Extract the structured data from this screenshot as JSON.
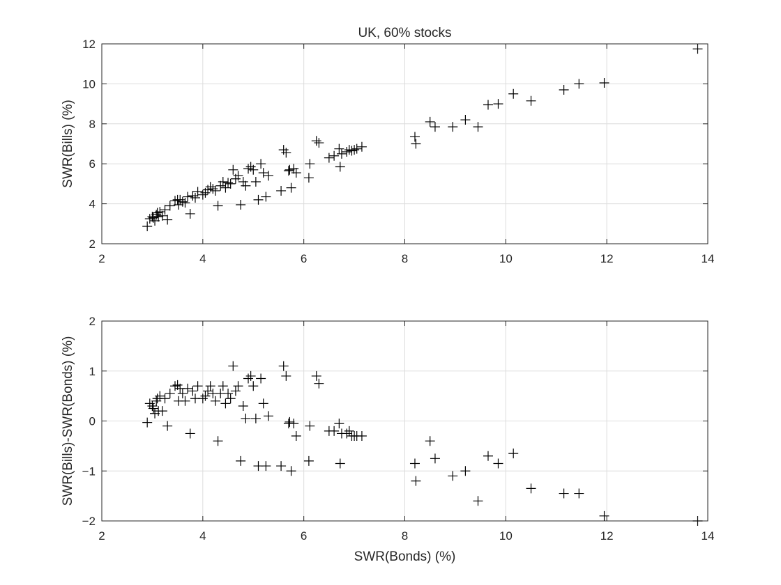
{
  "chart_data": [
    {
      "type": "scatter",
      "title": "UK, 60% stocks",
      "xlabel": "",
      "ylabel": "SWR(Bills) (%)",
      "xlim": [
        2,
        14
      ],
      "ylim": [
        2,
        12
      ],
      "xticks": [
        2,
        4,
        6,
        8,
        10,
        12,
        14
      ],
      "yticks": [
        2,
        4,
        6,
        8,
        10,
        12
      ],
      "grid": true,
      "marker": "plus",
      "x": [
        2.9,
        2.95,
        3.0,
        3.02,
        3.05,
        3.08,
        3.1,
        3.12,
        3.15,
        3.2,
        3.25,
        3.3,
        3.35,
        3.45,
        3.5,
        3.52,
        3.55,
        3.6,
        3.65,
        3.7,
        3.75,
        3.8,
        3.85,
        3.9,
        4.0,
        4.05,
        4.1,
        4.15,
        4.2,
        4.25,
        4.3,
        4.35,
        4.4,
        4.45,
        4.5,
        4.55,
        4.6,
        4.65,
        4.7,
        4.75,
        4.8,
        4.85,
        4.9,
        4.95,
        5.0,
        5.05,
        5.1,
        5.15,
        5.2,
        5.25,
        5.3,
        5.55,
        5.6,
        5.65,
        5.7,
        5.72,
        5.75,
        5.8,
        5.85,
        6.1,
        6.12,
        6.25,
        6.3,
        6.5,
        6.6,
        6.7,
        6.72,
        6.75,
        6.85,
        6.9,
        6.95,
        7.0,
        7.05,
        7.15,
        8.2,
        8.22,
        8.5,
        8.6,
        8.95,
        9.2,
        9.45,
        9.65,
        9.85,
        10.15,
        10.5,
        11.15,
        11.45,
        11.95,
        13.8
      ],
      "y": [
        2.87,
        3.25,
        3.35,
        3.3,
        3.15,
        3.45,
        3.55,
        3.35,
        3.6,
        3.4,
        3.7,
        3.2,
        3.9,
        4.15,
        4.2,
        3.95,
        4.2,
        4.1,
        4.05,
        4.35,
        3.5,
        4.4,
        4.3,
        4.6,
        4.45,
        4.55,
        4.7,
        4.85,
        4.75,
        4.65,
        3.9,
        4.9,
        5.1,
        4.8,
        5.05,
        5.0,
        5.7,
        5.25,
        5.4,
        3.95,
        5.1,
        4.9,
        5.75,
        5.85,
        5.7,
        5.1,
        4.2,
        6.0,
        5.55,
        4.35,
        5.4,
        4.65,
        6.7,
        6.55,
        5.65,
        5.7,
        4.8,
        5.75,
        5.55,
        5.3,
        6.0,
        7.15,
        7.05,
        6.3,
        6.4,
        6.75,
        5.85,
        6.5,
        6.6,
        6.7,
        6.65,
        6.7,
        6.75,
        6.85,
        7.35,
        7.0,
        8.1,
        7.85,
        7.85,
        8.2,
        7.85,
        8.95,
        9.0,
        9.5,
        9.15,
        9.7,
        10.0,
        10.05,
        11.75
      ]
    },
    {
      "type": "scatter",
      "title": "",
      "xlabel": "SWR(Bonds) (%)",
      "ylabel": "SWR(Bills)-SWR(Bonds) (%)",
      "xlim": [
        2,
        14
      ],
      "ylim": [
        -2,
        2
      ],
      "xticks": [
        2,
        4,
        6,
        8,
        10,
        12,
        14
      ],
      "yticks": [
        -2,
        -1,
        0,
        1,
        2
      ],
      "grid": true,
      "marker": "plus",
      "x": [
        2.9,
        2.95,
        3.0,
        3.02,
        3.05,
        3.08,
        3.1,
        3.12,
        3.15,
        3.2,
        3.25,
        3.3,
        3.35,
        3.45,
        3.5,
        3.52,
        3.55,
        3.6,
        3.65,
        3.7,
        3.75,
        3.8,
        3.85,
        3.9,
        4.0,
        4.05,
        4.1,
        4.15,
        4.2,
        4.25,
        4.3,
        4.35,
        4.4,
        4.45,
        4.5,
        4.55,
        4.6,
        4.65,
        4.7,
        4.75,
        4.8,
        4.85,
        4.9,
        4.95,
        5.0,
        5.05,
        5.1,
        5.15,
        5.2,
        5.25,
        5.3,
        5.55,
        5.6,
        5.65,
        5.7,
        5.72,
        5.75,
        5.8,
        5.85,
        6.1,
        6.12,
        6.25,
        6.3,
        6.5,
        6.6,
        6.7,
        6.72,
        6.75,
        6.85,
        6.9,
        6.95,
        7.0,
        7.05,
        7.15,
        8.2,
        8.22,
        8.5,
        8.6,
        8.95,
        9.2,
        9.45,
        9.65,
        9.85,
        10.15,
        10.5,
        11.15,
        11.45,
        11.95,
        13.8
      ],
      "y": [
        -0.03,
        0.35,
        0.3,
        0.25,
        0.15,
        0.4,
        0.45,
        0.2,
        0.5,
        0.2,
        0.45,
        -0.1,
        0.55,
        0.7,
        0.72,
        0.4,
        0.65,
        0.55,
        0.4,
        0.65,
        -0.25,
        0.6,
        0.45,
        0.7,
        0.45,
        0.5,
        0.6,
        0.7,
        0.55,
        0.4,
        -0.4,
        0.55,
        0.7,
        0.35,
        0.55,
        0.45,
        1.1,
        0.6,
        0.7,
        -0.8,
        0.3,
        0.05,
        0.85,
        0.9,
        0.7,
        0.05,
        -0.9,
        0.85,
        0.35,
        -0.9,
        0.1,
        -0.9,
        1.1,
        0.9,
        -0.05,
        -0.02,
        -1.0,
        -0.05,
        -0.3,
        -0.8,
        -0.1,
        0.9,
        0.75,
        -0.2,
        -0.2,
        -0.05,
        -0.85,
        -0.25,
        -0.25,
        -0.2,
        -0.3,
        -0.3,
        -0.3,
        -0.3,
        -0.85,
        -1.2,
        -0.4,
        -0.75,
        -1.1,
        -1.0,
        -1.6,
        -0.7,
        -0.85,
        -0.65,
        -1.35,
        -1.45,
        -1.45,
        -1.9,
        -2.0
      ]
    }
  ]
}
